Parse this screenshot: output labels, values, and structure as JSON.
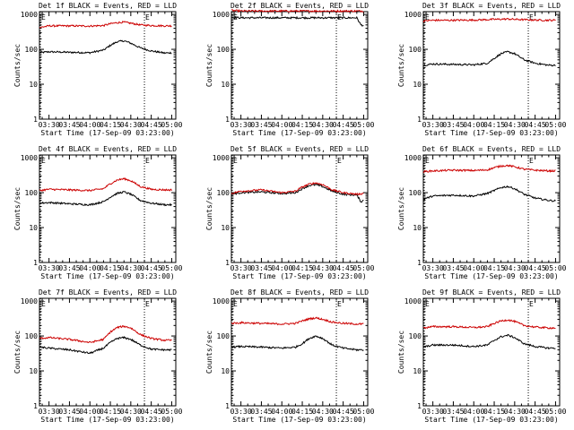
{
  "figure": {
    "shared": {
      "type": "line",
      "xlabel": "Start Time (17-Sep-09 03:23:00)",
      "ylabel": "Counts/sec",
      "x_tick_labels": [
        "03:30",
        "03:45",
        "04:00",
        "04:15",
        "04:30",
        "04:45",
        "05:00"
      ],
      "y_tick_labels": [
        "1",
        "10",
        "100",
        "1000"
      ],
      "ylim": [
        1,
        1200
      ],
      "y_scale": "log",
      "marker_labels": [
        "E",
        "E"
      ],
      "series_colors": {
        "events": "#000000",
        "lld": "#cc0000"
      }
    }
  },
  "chart_data": [
    {
      "title": "Det 1f BLACK = Events, RED = LLD",
      "series": [
        {
          "color": "#000000",
          "x": [
            "03:23",
            "03:30",
            "03:45",
            "04:00",
            "04:10",
            "04:15",
            "04:20",
            "04:25",
            "04:30",
            "04:37",
            "04:45",
            "04:55",
            "05:00"
          ],
          "values": [
            80,
            85,
            82,
            80,
            95,
            130,
            165,
            175,
            150,
            110,
            90,
            78,
            80
          ]
        },
        {
          "color": "#cc0000",
          "x": [
            "03:23",
            "03:30",
            "03:45",
            "04:00",
            "04:10",
            "04:15",
            "04:20",
            "04:25",
            "04:30",
            "04:37",
            "04:45",
            "04:55",
            "05:00"
          ],
          "values": [
            420,
            470,
            470,
            465,
            480,
            540,
            580,
            600,
            560,
            500,
            480,
            470,
            470
          ]
        }
      ]
    },
    {
      "title": "Det 2f BLACK = Events, RED = LLD",
      "series": [
        {
          "color": "#000000",
          "x": [
            "03:23",
            "03:30",
            "03:45",
            "04:00",
            "04:15",
            "04:30",
            "04:45",
            "04:55",
            "04:58",
            "05:00"
          ],
          "values": [
            820,
            800,
            800,
            800,
            800,
            800,
            800,
            800,
            500,
            480
          ]
        },
        {
          "color": "#cc0000",
          "x": [
            "03:23",
            "03:30",
            "03:45",
            "04:00",
            "04:15",
            "04:30",
            "04:45",
            "04:55",
            "05:00"
          ],
          "values": [
            1300,
            1250,
            1250,
            1250,
            1250,
            1250,
            1250,
            1250,
            1250
          ]
        }
      ]
    },
    {
      "title": "Det 3f BLACK = Events, RED = LLD",
      "series": [
        {
          "color": "#000000",
          "x": [
            "03:23",
            "03:30",
            "03:45",
            "04:00",
            "04:10",
            "04:15",
            "04:20",
            "04:25",
            "04:30",
            "04:37",
            "04:45",
            "04:55",
            "05:00"
          ],
          "values": [
            35,
            38,
            37,
            36,
            40,
            55,
            75,
            85,
            75,
            50,
            40,
            35,
            35
          ]
        },
        {
          "color": "#cc0000",
          "x": [
            "03:23",
            "03:30",
            "03:45",
            "04:00",
            "04:15",
            "04:25",
            "04:30",
            "04:45",
            "04:55",
            "05:00"
          ],
          "values": [
            650,
            680,
            680,
            690,
            720,
            740,
            720,
            690,
            680,
            680
          ]
        }
      ]
    },
    {
      "title": "Det 4f BLACK = Events, RED = LLD",
      "series": [
        {
          "color": "#000000",
          "x": [
            "03:23",
            "03:30",
            "03:45",
            "04:00",
            "04:10",
            "04:15",
            "04:20",
            "04:25",
            "04:30",
            "04:37",
            "04:45",
            "04:55",
            "05:00"
          ],
          "values": [
            50,
            52,
            48,
            45,
            55,
            75,
            95,
            105,
            90,
            60,
            50,
            45,
            45
          ]
        },
        {
          "color": "#cc0000",
          "x": [
            "03:23",
            "03:30",
            "03:45",
            "04:00",
            "04:10",
            "04:15",
            "04:20",
            "04:25",
            "04:30",
            "04:37",
            "04:45",
            "04:55",
            "05:00"
          ],
          "values": [
            115,
            125,
            120,
            115,
            130,
            180,
            230,
            250,
            220,
            150,
            125,
            120,
            120
          ]
        }
      ]
    },
    {
      "title": "Det 5f BLACK = Events, RED = LLD",
      "series": [
        {
          "color": "#000000",
          "x": [
            "03:23",
            "03:30",
            "03:45",
            "04:00",
            "04:10",
            "04:15",
            "04:20",
            "04:25",
            "04:30",
            "04:37",
            "04:45",
            "04:55",
            "04:58",
            "05:00"
          ],
          "values": [
            90,
            100,
            105,
            95,
            100,
            130,
            160,
            170,
            150,
            110,
            90,
            85,
            55,
            60
          ]
        },
        {
          "color": "#cc0000",
          "x": [
            "03:23",
            "03:30",
            "03:45",
            "04:00",
            "04:10",
            "04:15",
            "04:20",
            "04:25",
            "04:30",
            "04:37",
            "04:45",
            "04:55",
            "05:00"
          ],
          "values": [
            95,
            110,
            120,
            100,
            110,
            145,
            175,
            190,
            170,
            120,
            100,
            90,
            95
          ]
        }
      ]
    },
    {
      "title": "Det 6f BLACK = Events, RED = LLD",
      "series": [
        {
          "color": "#000000",
          "x": [
            "03:23",
            "03:30",
            "03:45",
            "04:00",
            "04:10",
            "04:15",
            "04:20",
            "04:25",
            "04:30",
            "04:37",
            "04:45",
            "04:55",
            "05:00"
          ],
          "values": [
            65,
            80,
            85,
            80,
            95,
            115,
            140,
            150,
            130,
            90,
            70,
            60,
            58
          ]
        },
        {
          "color": "#cc0000",
          "x": [
            "03:23",
            "03:30",
            "03:45",
            "04:00",
            "04:10",
            "04:15",
            "04:20",
            "04:25",
            "04:30",
            "04:37",
            "04:45",
            "04:55",
            "05:00"
          ],
          "values": [
            400,
            420,
            440,
            430,
            450,
            520,
            580,
            600,
            550,
            470,
            440,
            420,
            420
          ]
        }
      ]
    },
    {
      "title": "Det 7f BLACK = Events, RED = LLD",
      "series": [
        {
          "color": "#000000",
          "x": [
            "03:23",
            "03:30",
            "03:45",
            "04:00",
            "04:10",
            "04:15",
            "04:20",
            "04:25",
            "04:30",
            "04:37",
            "04:45",
            "04:55",
            "05:00"
          ],
          "values": [
            48,
            45,
            40,
            32,
            45,
            65,
            85,
            90,
            80,
            55,
            42,
            40,
            40
          ]
        },
        {
          "color": "#cc0000",
          "x": [
            "03:23",
            "03:30",
            "03:45",
            "04:00",
            "04:10",
            "04:15",
            "04:20",
            "04:25",
            "04:30",
            "04:37",
            "04:45",
            "04:55",
            "05:00"
          ],
          "values": [
            85,
            90,
            80,
            65,
            80,
            130,
            175,
            190,
            170,
            110,
            85,
            75,
            75
          ]
        }
      ]
    },
    {
      "title": "Det 8f BLACK = Events, RED = LLD",
      "series": [
        {
          "color": "#000000",
          "x": [
            "03:23",
            "03:30",
            "03:45",
            "04:00",
            "04:10",
            "04:15",
            "04:20",
            "04:25",
            "04:30",
            "04:37",
            "04:45",
            "04:55",
            "05:00"
          ],
          "values": [
            48,
            50,
            48,
            45,
            48,
            60,
            85,
            100,
            85,
            55,
            45,
            40,
            40
          ]
        },
        {
          "color": "#cc0000",
          "x": [
            "03:23",
            "03:30",
            "03:45",
            "04:00",
            "04:10",
            "04:15",
            "04:20",
            "04:25",
            "04:30",
            "04:37",
            "04:45",
            "04:55",
            "05:00"
          ],
          "values": [
            230,
            240,
            230,
            220,
            230,
            270,
            310,
            330,
            300,
            250,
            230,
            220,
            220
          ]
        }
      ]
    },
    {
      "title": "Det 9f BLACK = Events, RED = LLD",
      "series": [
        {
          "color": "#000000",
          "x": [
            "03:23",
            "03:30",
            "03:45",
            "04:00",
            "04:10",
            "04:15",
            "04:20",
            "04:25",
            "04:30",
            "04:37",
            "04:45",
            "04:55",
            "05:00"
          ],
          "values": [
            48,
            55,
            55,
            50,
            55,
            75,
            95,
            105,
            90,
            60,
            50,
            45,
            45
          ]
        },
        {
          "color": "#cc0000",
          "x": [
            "03:23",
            "03:30",
            "03:45",
            "04:00",
            "04:10",
            "04:15",
            "04:20",
            "04:25",
            "04:30",
            "04:37",
            "04:45",
            "04:55",
            "05:00"
          ],
          "values": [
            170,
            185,
            185,
            175,
            185,
            230,
            270,
            290,
            260,
            200,
            180,
            170,
            170
          ]
        }
      ]
    }
  ]
}
